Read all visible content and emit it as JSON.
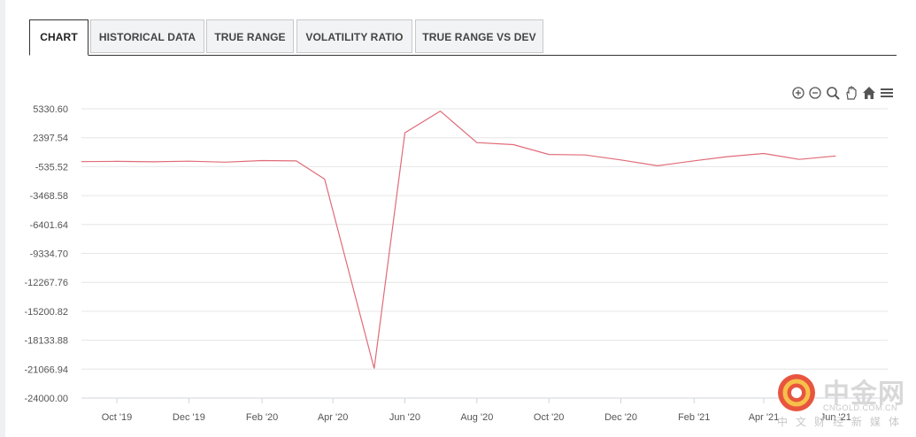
{
  "tabs": [
    {
      "label": "CHART",
      "active": true
    },
    {
      "label": "HISTORICAL DATA",
      "active": false
    },
    {
      "label": "TRUE RANGE",
      "active": false
    },
    {
      "label": "VOLATILITY RATIO",
      "active": false
    },
    {
      "label": "TRUE RANGE VS DEV",
      "active": false
    }
  ],
  "toolbar": {
    "icons": [
      "zoom-in-icon",
      "zoom-out-icon",
      "magnifier-icon",
      "pan-hand-icon",
      "home-icon",
      "menu-icon"
    ]
  },
  "colors": {
    "line": "#e06b78",
    "grid": "#e6e6e6",
    "text": "#555555",
    "tab_border": "#c8c8c8"
  },
  "watermark": {
    "brand": "中金网",
    "url": "CNGOLD.COM.CN",
    "tagline": "中文财经新媒体"
  },
  "chart_data": {
    "type": "line",
    "title": "",
    "xlabel": "",
    "ylabel": "",
    "y_ticks": [
      "5330.60",
      "2397.54",
      "-535.52",
      "-3468.58",
      "-6401.64",
      "-9334.70",
      "-12267.76",
      "-15200.82",
      "-18133.88",
      "-21066.94",
      "-24000.00"
    ],
    "ylim": [
      -24000.0,
      5330.6
    ],
    "x_ticks": [
      "Oct '19",
      "Dec '19",
      "Feb '20",
      "Apr '20",
      "Jun '20",
      "Aug '20",
      "Oct '20",
      "Dec '20",
      "Feb '21",
      "Apr '21",
      "Jun '21"
    ],
    "grid": true,
    "series": [
      {
        "x": [
          "2019-09-01",
          "2019-10-01",
          "2019-11-01",
          "2019-12-01",
          "2020-01-01",
          "2020-02-01",
          "2020-03-01",
          "2020-03-25",
          "2020-05-06",
          "2020-06-01",
          "2020-07-01",
          "2020-08-01",
          "2020-09-01",
          "2020-10-01",
          "2020-11-01",
          "2020-12-01",
          "2021-01-01",
          "2021-02-01",
          "2021-03-01",
          "2021-04-01",
          "2021-05-01",
          "2021-06-01"
        ],
        "y": [
          -20,
          0,
          -40,
          20,
          -80,
          80,
          50,
          -1800,
          -21000,
          2900,
          5100,
          1900,
          1700,
          700,
          650,
          150,
          -450,
          60,
          480,
          800,
          200,
          550
        ]
      }
    ]
  }
}
